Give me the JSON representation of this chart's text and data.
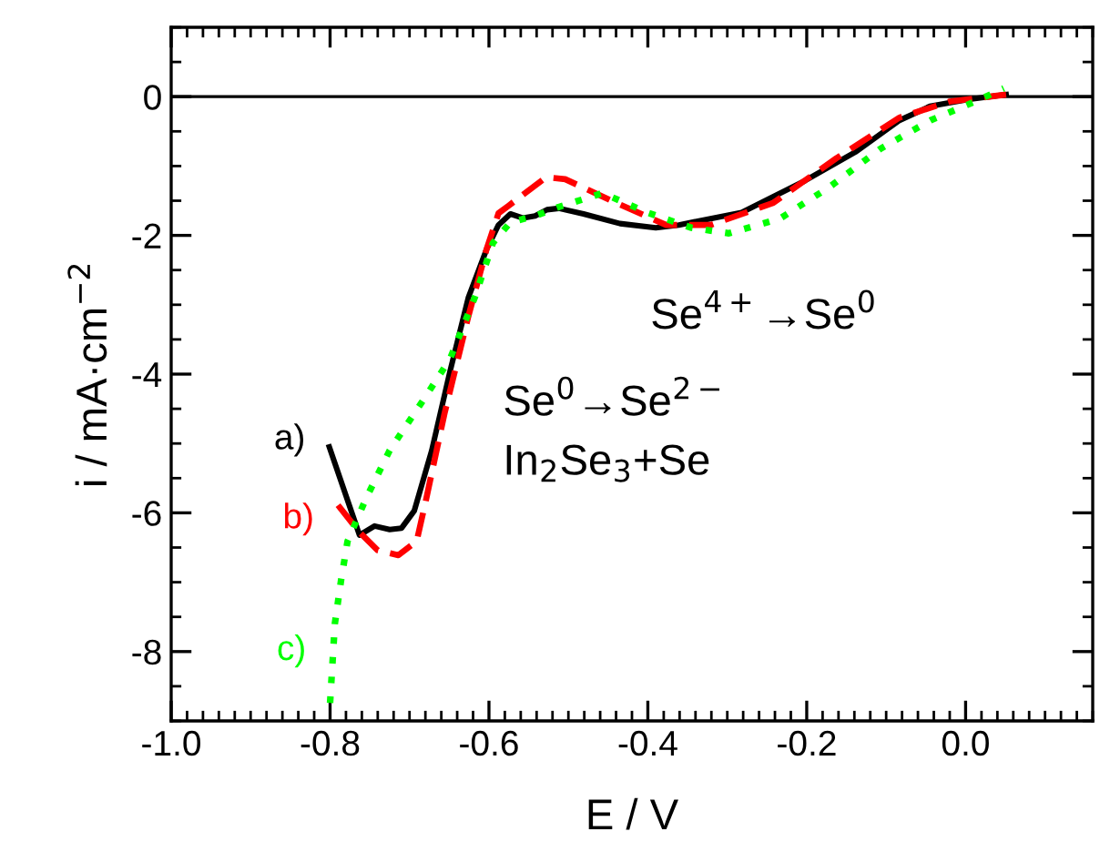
{
  "chart_data": {
    "type": "line",
    "xlabel": "E / V",
    "ylabel": "i / mA·cm$^{−2}$",
    "xlim": [
      -1.0,
      0.16
    ],
    "ylim": [
      -9,
      1
    ],
    "xticks": [
      {
        "value": -1.0,
        "label": "-1.0"
      },
      -0.8,
      -0.6,
      -0.4,
      -0.2,
      {
        "value": 0.0,
        "label": "0.0"
      }
    ],
    "yticks": [
      -8,
      -6,
      -4,
      -2,
      0
    ],
    "grid": false,
    "legend": false,
    "ref_lines": [
      {
        "axis": "y",
        "value": 0,
        "color": "#000000",
        "line_style": "solid"
      }
    ],
    "annotations": [
      "Se$^{4+}$→Se$^{0}$",
      "Se$^{0}$→Se$^{2−}$",
      "In$_{2}$Se$_{3}$+Se"
    ],
    "series": [
      {
        "name": "a)",
        "color": "#000000",
        "line_style": "solid",
        "x": [
          -0.801,
          -0.763,
          -0.744,
          -0.725,
          -0.71,
          -0.694,
          -0.672,
          -0.649,
          -0.626,
          -0.603,
          -0.588,
          -0.573,
          -0.557,
          -0.542,
          -0.527,
          -0.512,
          -0.481,
          -0.435,
          -0.39,
          -0.361,
          -0.282,
          -0.202,
          -0.139,
          -0.083,
          -0.045,
          0.003,
          0.051
        ],
        "values": [
          -5.05,
          -6.32,
          -6.19,
          -6.24,
          -6.22,
          -5.97,
          -5.1,
          -3.96,
          -2.9,
          -2.2,
          -1.85,
          -1.69,
          -1.75,
          -1.72,
          -1.63,
          -1.61,
          -1.69,
          -1.83,
          -1.89,
          -1.85,
          -1.67,
          -1.21,
          -0.8,
          -0.34,
          -0.14,
          -0.04,
          0.03
        ]
      },
      {
        "name": "b)",
        "color": "#ff0000",
        "line_style": "dashed",
        "x": [
          -0.79,
          -0.763,
          -0.74,
          -0.714,
          -0.691,
          -0.679,
          -0.656,
          -0.626,
          -0.603,
          -0.588,
          -0.575,
          -0.528,
          -0.504,
          -0.44,
          -0.377,
          -0.321,
          -0.242,
          -0.163,
          -0.083,
          -0.02,
          0.051
        ],
        "values": [
          -5.89,
          -6.28,
          -6.54,
          -6.61,
          -6.41,
          -5.8,
          -4.57,
          -3.17,
          -2.2,
          -1.68,
          -1.57,
          -1.16,
          -1.19,
          -1.53,
          -1.85,
          -1.85,
          -1.53,
          -0.89,
          -0.3,
          -0.07,
          0.03
        ]
      },
      {
        "name": "c)",
        "color": "#00ff00",
        "line_style": "dotted",
        "x": [
          -0.8,
          -0.794,
          -0.786,
          -0.778,
          -0.755,
          -0.725,
          -0.679,
          -0.649,
          -0.618,
          -0.595,
          -0.573,
          -0.542,
          -0.512,
          -0.457,
          -0.401,
          -0.345,
          -0.298,
          -0.234,
          -0.171,
          -0.107,
          -0.044,
          0.012,
          0.048
        ],
        "values": [
          -8.74,
          -7.6,
          -6.96,
          -6.41,
          -5.8,
          -5.1,
          -4.31,
          -3.78,
          -2.9,
          -2.11,
          -1.81,
          -1.72,
          -1.59,
          -1.39,
          -1.67,
          -1.89,
          -1.97,
          -1.76,
          -1.3,
          -0.75,
          -0.34,
          -0.07,
          0.12
        ]
      }
    ]
  }
}
